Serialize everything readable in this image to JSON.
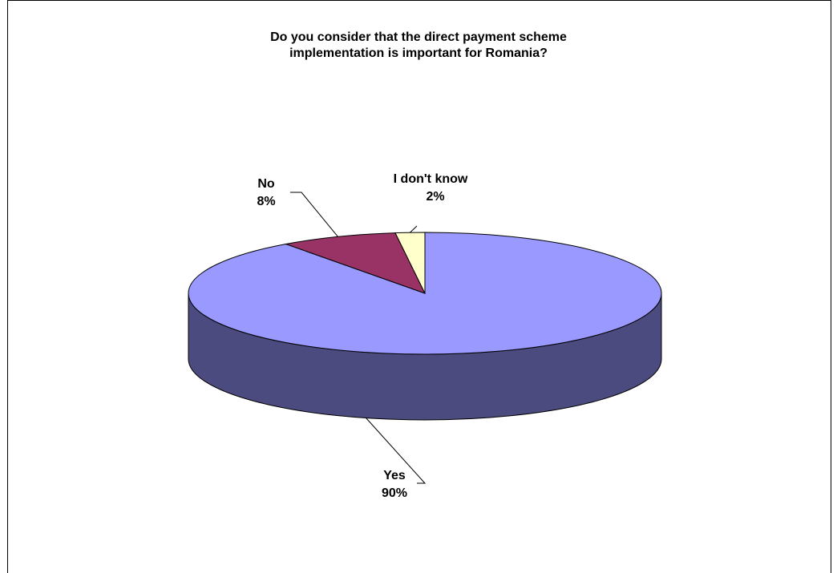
{
  "chart_data": {
    "type": "pie",
    "title_lines": [
      "Do you consider that the direct payment scheme",
      "implementation is important for Romania?"
    ],
    "slices": [
      {
        "label": "Yes",
        "value": 90,
        "value_label": "90%",
        "color": "#9999ff",
        "side_color": "#4b4b7f"
      },
      {
        "label": "No",
        "value": 8,
        "value_label": "8%",
        "color": "#993366",
        "side_color": "#4d1a33"
      },
      {
        "label": "I don't know",
        "value": 2,
        "value_label": "2%",
        "color": "#ffffcc",
        "side_color": "#80806a"
      }
    ],
    "three_d": true,
    "legend": "none"
  }
}
